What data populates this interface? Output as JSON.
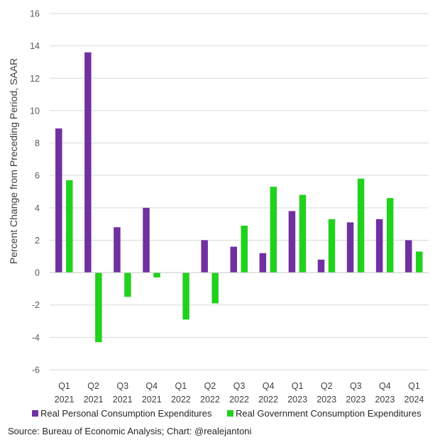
{
  "chart_data": {
    "type": "bar",
    "title": "",
    "xlabel": "",
    "ylabel": "Percent Change from Preceding Period, SAAR",
    "ylim": [
      -6,
      16
    ],
    "yticks": [
      -6,
      -4,
      -2,
      0,
      2,
      4,
      6,
      8,
      10,
      12,
      14,
      16
    ],
    "grid": true,
    "legend_position": "bottom",
    "categories": [
      [
        "Q1",
        "2021"
      ],
      [
        "Q2",
        "2021"
      ],
      [
        "Q3",
        "2021"
      ],
      [
        "Q4",
        "2021"
      ],
      [
        "Q1",
        "2022"
      ],
      [
        "Q2",
        "2022"
      ],
      [
        "Q3",
        "2022"
      ],
      [
        "Q4",
        "2022"
      ],
      [
        "Q1",
        "2023"
      ],
      [
        "Q2",
        "2023"
      ],
      [
        "Q3",
        "2023"
      ],
      [
        "Q4",
        "2023"
      ],
      [
        "Q1",
        "2024"
      ]
    ],
    "series": [
      {
        "name": "Real Personal Consumption Expenditures",
        "color": "#7030A0",
        "values": [
          8.9,
          13.6,
          2.8,
          4.0,
          0.0,
          2.0,
          1.6,
          1.2,
          3.8,
          0.8,
          3.1,
          3.3,
          2.0
        ]
      },
      {
        "name": "Real Government Consumption Expenditures",
        "color": "#22D11E",
        "values": [
          5.7,
          -4.3,
          -1.5,
          -0.3,
          -2.9,
          -1.9,
          2.9,
          5.3,
          4.8,
          3.3,
          5.8,
          4.6,
          1.3
        ]
      }
    ],
    "source": "Source: Bureau of Economic Analysis; Chart: @realejantoni"
  }
}
